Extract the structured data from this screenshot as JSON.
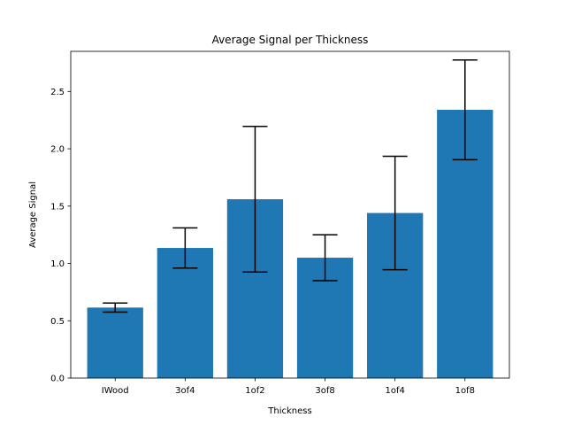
{
  "chart_data": {
    "type": "bar",
    "title": "Average Signal per Thickness",
    "xlabel": "Thickness",
    "ylabel": "Average Signal",
    "categories": [
      "IWood",
      "3of4",
      "1of2",
      "3of8",
      "1of4",
      "1of8"
    ],
    "values": [
      0.615,
      1.135,
      1.56,
      1.05,
      1.44,
      2.34
    ],
    "error": [
      0.04,
      0.175,
      0.635,
      0.2,
      0.495,
      0.435
    ],
    "ylim": [
      0,
      2.85
    ],
    "yticks": [
      0.0,
      0.5,
      1.0,
      1.5,
      2.0,
      2.5
    ],
    "ytick_labels": [
      "0.0",
      "0.5",
      "1.0",
      "1.5",
      "2.0",
      "2.5"
    ],
    "grid": false,
    "colors": {
      "bar": "#1f77b4",
      "error": "#000000",
      "axis": "#000000"
    }
  }
}
